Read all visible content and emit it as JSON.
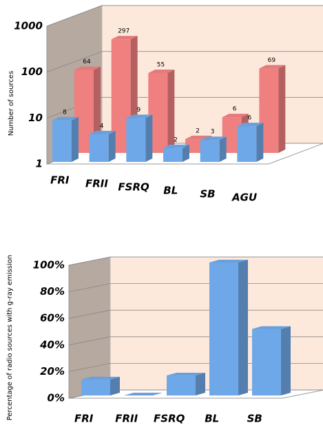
{
  "chart_data": [
    {
      "type": "bar3d",
      "y_label": "Number of sources",
      "log_scale": true,
      "categories": [
        "FRI",
        "FRII",
        "FSRQ",
        "BL",
        "SB",
        "AGU"
      ],
      "series": [
        {
          "color": "#f08080",
          "values": [
            64,
            297,
            55,
            2,
            6,
            69
          ]
        },
        {
          "color": "#6fa8e8",
          "values": [
            8,
            4,
            9,
            2,
            3,
            6
          ]
        }
      ],
      "ylim": [
        1,
        1000
      ],
      "yticks": [
        1,
        10,
        100,
        1000
      ],
      "grid": true
    },
    {
      "type": "bar3d",
      "y_label": "Percentage of radio sources with g-ray emission",
      "log_scale": false,
      "categories": [
        "FRI",
        "FRII",
        "FSRQ",
        "BL",
        "SB"
      ],
      "series": [
        {
          "color": "#6fa8e8",
          "values": [
            12,
            0,
            15,
            100,
            50
          ]
        }
      ],
      "ylim": [
        0,
        100
      ],
      "yticks": [
        {
          "value": 0,
          "label": "0%"
        },
        {
          "value": 20,
          "label": "20%"
        },
        {
          "value": 40,
          "label": "40%"
        },
        {
          "value": 60,
          "label": "60%"
        },
        {
          "value": 80,
          "label": "80%"
        },
        {
          "value": 100,
          "label": "100%"
        }
      ],
      "grid": true
    }
  ]
}
